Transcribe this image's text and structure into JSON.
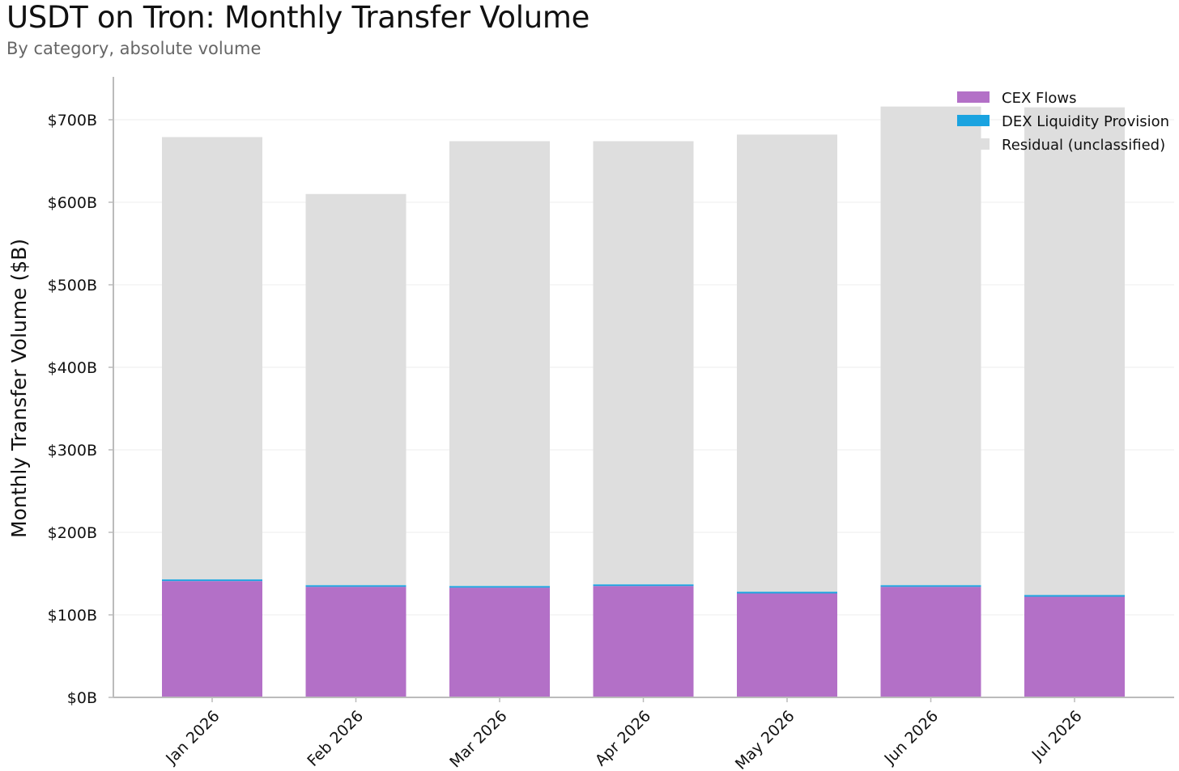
{
  "header": {
    "title": "USDT on Tron: Monthly Transfer Volume",
    "subtitle": "By category, absolute volume"
  },
  "colors": {
    "cex": "#b370c7",
    "dex": "#1aa3e0",
    "residual": "#dedede",
    "grid": "#eeeeee",
    "axis": "#bbbbbb"
  },
  "chart_data": {
    "type": "bar",
    "stacked": true,
    "title": "USDT on Tron: Monthly Transfer Volume",
    "subtitle": "By category, absolute volume",
    "xlabel": "",
    "ylabel": "Monthly Transfer Volume ($B)",
    "categories": [
      "Jan 2026",
      "Feb 2026",
      "Mar 2026",
      "Apr 2026",
      "May 2026",
      "Jun 2026",
      "Jul 2026"
    ],
    "series": [
      {
        "name": "CEX Flows",
        "values": [
          141,
          134,
          133,
          135,
          126,
          134,
          122
        ]
      },
      {
        "name": "DEX Liquidity Provision",
        "values": [
          2,
          2,
          2,
          2,
          2,
          2,
          2
        ]
      },
      {
        "name": "Residual (unclassified)",
        "values": [
          536,
          474,
          539,
          537,
          554,
          580,
          591
        ]
      }
    ],
    "ylim": [
      0,
      750
    ],
    "yticks": [
      0,
      100,
      200,
      300,
      400,
      500,
      600,
      700
    ],
    "ytick_labels": [
      "$0B",
      "$100B",
      "$200B",
      "$300B",
      "$400B",
      "$500B",
      "$600B",
      "$700B"
    ],
    "grid": true,
    "legend_position": "top-right"
  }
}
